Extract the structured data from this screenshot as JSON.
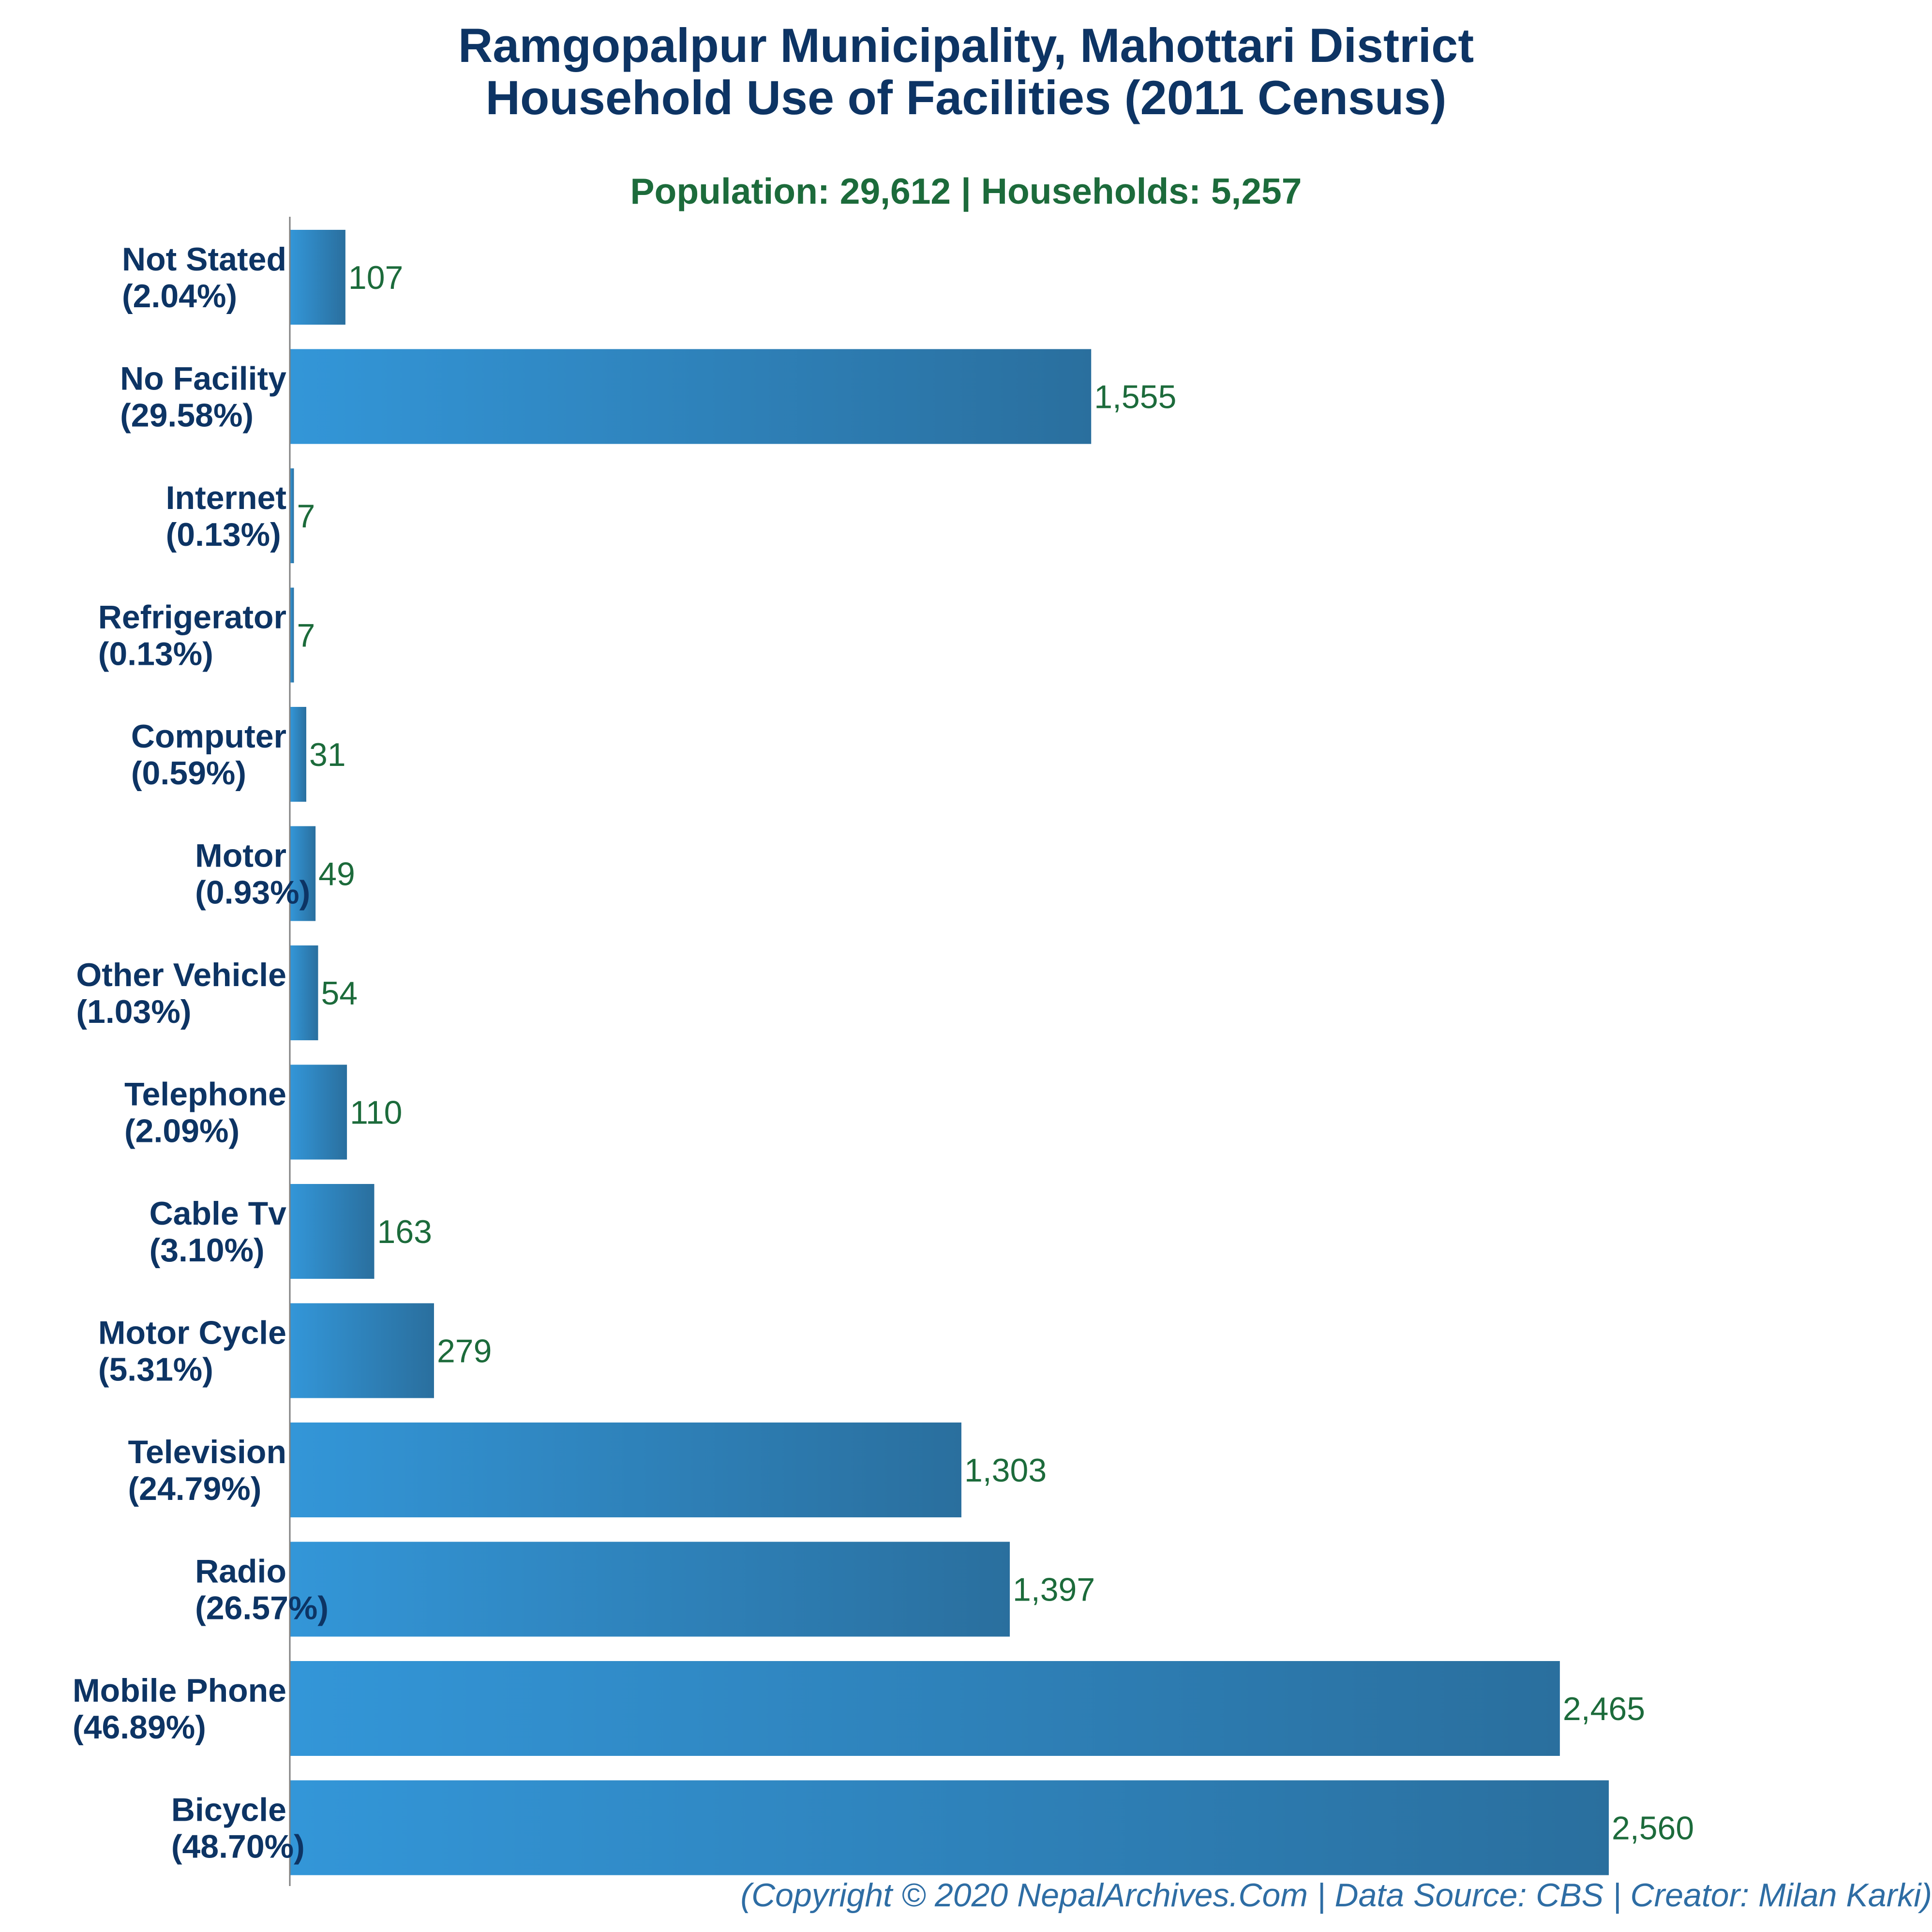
{
  "title_lines": [
    "Ramgopalpur Municipality, Mahottari District",
    "Household Use of Facilities (2011 Census)"
  ],
  "subtitle": "Population: 29,612 | Households: 5,257",
  "footer": "(Copyright © 2020 NepalArchives.Com | Data Source: CBS | Creator: Milan Karki)",
  "colors": {
    "title": "#0d3464",
    "subtitle": "#1c6b3b",
    "category_label": "#0d3464",
    "value_label": "#1c6b3b",
    "bar_start": "#3396d8",
    "bar_end": "#2a6f9e",
    "footer": "#2e6da4",
    "axis": "#7f7f7f"
  },
  "chart_data": {
    "type": "bar",
    "orientation": "horizontal",
    "title": "Ramgopalpur Municipality, Mahottari District Household Use of Facilities (2011 Census)",
    "subtitle": "Population: 29,612 | Households: 5,257",
    "xlabel": "",
    "ylabel": "",
    "xlim": [
      0,
      2560
    ],
    "grid": false,
    "legend": "none",
    "categories": [
      "Not Stated",
      "No Facility",
      "Internet",
      "Refrigerator",
      "Computer",
      "Motor",
      "Other Vehicle",
      "Telephone",
      "Cable Tv",
      "Motor Cycle",
      "Television",
      "Radio",
      "Mobile Phone",
      "Bicycle"
    ],
    "percent_labels": [
      "(2.04%)",
      "(29.58%)",
      "(0.13%)",
      "(0.13%)",
      "(0.59%)",
      "(0.93%)",
      "(1.03%)",
      "(2.09%)",
      "(3.10%)",
      "(5.31%)",
      "(24.79%)",
      "(26.57%)",
      "(46.89%)",
      "(48.70%)"
    ],
    "values": [
      107,
      1555,
      7,
      7,
      31,
      49,
      54,
      110,
      163,
      279,
      1303,
      1397,
      2465,
      2560
    ],
    "value_labels": [
      "107",
      "1,555",
      "7",
      "7",
      "31",
      "49",
      "54",
      "110",
      "163",
      "279",
      "1,303",
      "1,397",
      "2,465",
      "2,560"
    ]
  }
}
